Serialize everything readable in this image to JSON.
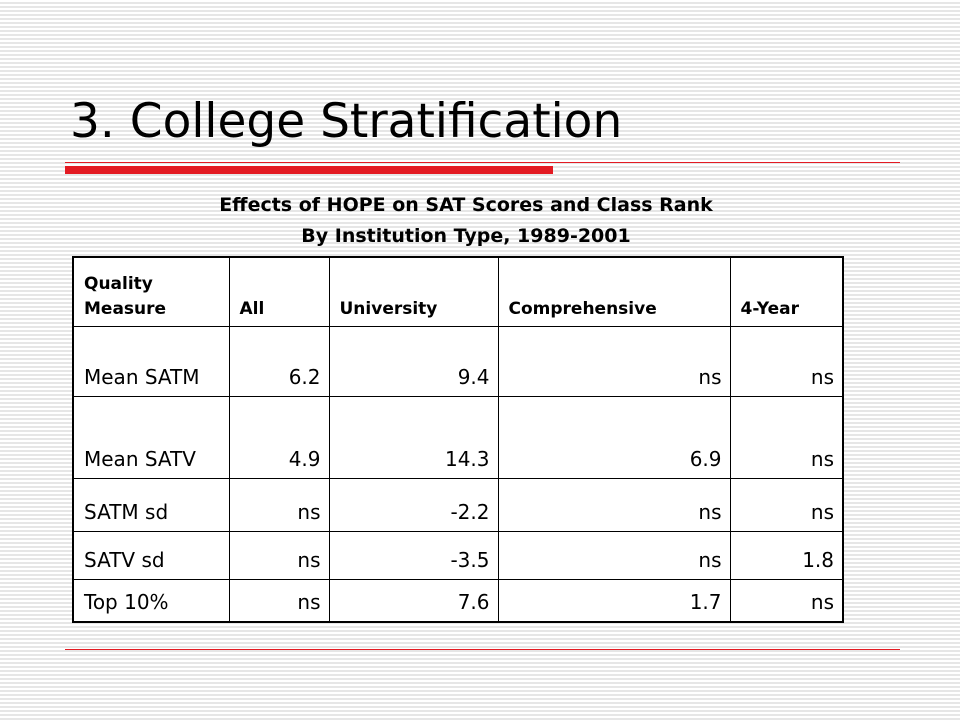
{
  "header": {
    "title": "3. College Stratification"
  },
  "table": {
    "caption": [
      "Effects of HOPE on SAT Scores and Class Rank",
      "By Institution Type, 1989-2001"
    ],
    "columns": [
      "Quality Measure",
      "All",
      "University",
      "Comprehensive",
      "4-Year"
    ],
    "rows": [
      [
        "Mean SATM",
        "6.2",
        "9.4",
        "ns",
        "ns"
      ],
      [
        "Mean SATV",
        "4.9",
        "14.3",
        "6.9",
        "ns"
      ],
      [
        "SATM sd",
        "ns",
        "-2.2",
        "ns",
        "ns"
      ],
      [
        "SATV sd",
        "ns",
        "-3.5",
        "ns",
        "1.8"
      ],
      [
        "Top 10%",
        "ns",
        "7.6",
        "1.7",
        "ns"
      ]
    ]
  }
}
